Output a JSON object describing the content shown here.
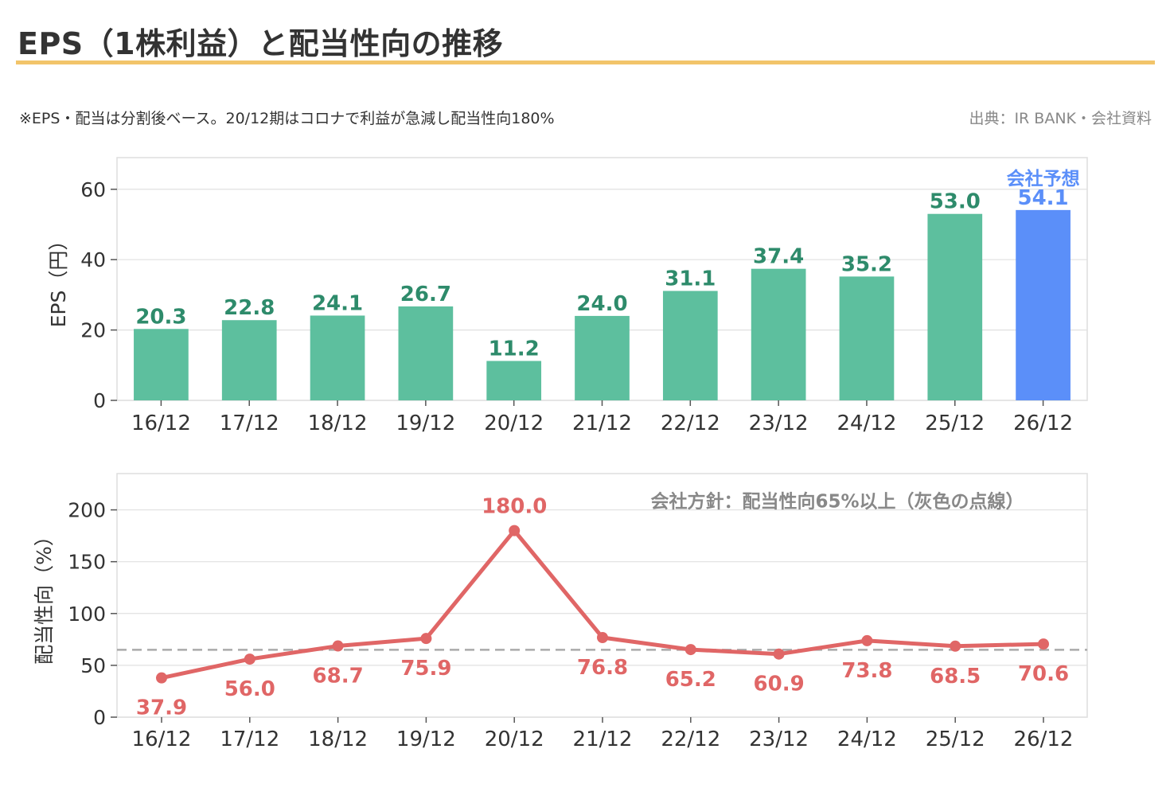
{
  "title": "EPS（1株利益）と配当性向の推移",
  "note": "※EPS・配当は分割後ベース。20/12期はコロナで利益が急減し配当性向180%",
  "source": "出典：IR BANK・会社資料",
  "colors": {
    "accent_rule": "#f2c46a",
    "eps_bar": "#5dbf9e",
    "eps_bar_forecast": "#5b8ff9",
    "eps_label": "#2e8b6b",
    "forecast_label": "#5b8ff9",
    "payout_line": "#e06666",
    "policy_line": "#aaaaaa",
    "grid": "#e0e0e0",
    "text": "#333333"
  },
  "chart_data": [
    {
      "type": "bar",
      "categories": [
        "16/12",
        "17/12",
        "18/12",
        "19/12",
        "20/12",
        "21/12",
        "22/12",
        "23/12",
        "24/12",
        "25/12",
        "26/12"
      ],
      "values": [
        20.3,
        22.8,
        24.1,
        26.7,
        11.2,
        24.0,
        31.1,
        37.4,
        35.2,
        53.0,
        54.1
      ],
      "value_labels": [
        "20.3",
        "22.8",
        "24.1",
        "26.7",
        "11.2",
        "24.0",
        "31.1",
        "37.4",
        "35.2",
        "53.0",
        "54.1"
      ],
      "ylabel": "EPS（円）",
      "ylim": [
        0,
        69
      ],
      "yticks": [
        0,
        20,
        40,
        60
      ],
      "grid": true,
      "forecast_index": 10,
      "forecast_annotation": "会社予想"
    },
    {
      "type": "line",
      "categories": [
        "16/12",
        "17/12",
        "18/12",
        "19/12",
        "20/12",
        "21/12",
        "22/12",
        "23/12",
        "24/12",
        "25/12",
        "26/12"
      ],
      "values": [
        37.9,
        56.0,
        68.7,
        75.9,
        180.0,
        76.8,
        65.2,
        60.9,
        73.8,
        68.5,
        70.6
      ],
      "value_labels": [
        "37.9",
        "56.0",
        "68.7",
        "75.9",
        "180.0",
        "76.8",
        "65.2",
        "60.9",
        "73.8",
        "68.5",
        "70.6"
      ],
      "ylabel": "配当性向（%）",
      "ylim": [
        0,
        235
      ],
      "yticks": [
        0,
        50,
        100,
        150,
        200
      ],
      "grid": true,
      "reference_line": 65,
      "annotation": "会社方針：配当性向65%以上（灰色の点線）"
    }
  ]
}
